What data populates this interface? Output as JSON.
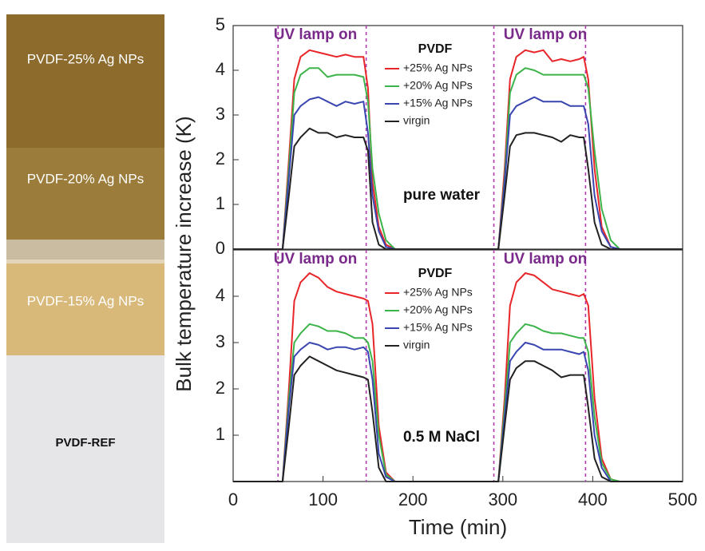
{
  "photo": {
    "labels": [
      "PVDF-25% Ag NPs",
      "PVDF-20% Ag NPs",
      "PVDF-15% Ag NPs",
      "PVDF-REF"
    ]
  },
  "chart_data": [
    {
      "type": "line",
      "ylabel": "Bulk temperature increase (K)",
      "legend_title": "PVDF",
      "annotations": [
        "UV lamp on",
        "UV lamp on",
        "pure water"
      ],
      "vlines": [
        50,
        148,
        290,
        392
      ],
      "xlim": [
        0,
        500
      ],
      "ylim": [
        0,
        5
      ],
      "yticks": [
        0,
        1,
        2,
        3,
        4,
        5
      ],
      "x": [
        0,
        55,
        62,
        68,
        75,
        85,
        95,
        105,
        115,
        125,
        135,
        145,
        150,
        155,
        162,
        170,
        180,
        190,
        290,
        295,
        302,
        308,
        315,
        325,
        335,
        345,
        355,
        365,
        375,
        385,
        390,
        395,
        402,
        410,
        420,
        430,
        500
      ],
      "series": [
        {
          "name": "+25% Ag NPs",
          "color": "#e8262a",
          "values": [
            0,
            0,
            2.0,
            3.8,
            4.3,
            4.45,
            4.4,
            4.35,
            4.3,
            4.35,
            4.3,
            4.3,
            3.6,
            1.5,
            0.5,
            0.1,
            0,
            0,
            0,
            0,
            1.8,
            3.8,
            4.3,
            4.45,
            4.4,
            4.45,
            4.2,
            4.25,
            4.2,
            4.25,
            4.3,
            3.8,
            1.8,
            0.5,
            0.05,
            0,
            0
          ]
        },
        {
          "name": "+20% Ag NPs",
          "color": "#3cb44a",
          "values": [
            0,
            0,
            1.8,
            3.5,
            3.9,
            4.05,
            4.05,
            3.85,
            3.9,
            3.9,
            3.9,
            3.85,
            3.3,
            1.8,
            0.8,
            0.2,
            0,
            0,
            0,
            0,
            1.6,
            3.5,
            3.9,
            4.05,
            4.0,
            3.9,
            3.9,
            3.9,
            3.9,
            3.9,
            3.9,
            3.6,
            2.2,
            0.9,
            0.2,
            0,
            0
          ]
        },
        {
          "name": "+15% Ag NPs",
          "color": "#3a46b0",
          "values": [
            0,
            0,
            1.6,
            3.0,
            3.2,
            3.35,
            3.4,
            3.3,
            3.2,
            3.3,
            3.25,
            3.3,
            2.6,
            1.2,
            0.4,
            0.05,
            0,
            0,
            0,
            0,
            1.5,
            3.0,
            3.2,
            3.3,
            3.4,
            3.3,
            3.3,
            3.3,
            3.2,
            3.2,
            3.2,
            2.8,
            1.2,
            0.4,
            0.05,
            0,
            0
          ]
        },
        {
          "name": "virgin",
          "color": "#222222",
          "values": [
            0,
            0,
            1.2,
            2.3,
            2.5,
            2.7,
            2.6,
            2.6,
            2.5,
            2.55,
            2.5,
            2.5,
            2.2,
            0.6,
            0.1,
            0,
            0,
            0,
            0,
            0,
            1.2,
            2.3,
            2.55,
            2.6,
            2.6,
            2.55,
            2.5,
            2.4,
            2.55,
            2.5,
            2.5,
            1.8,
            0.6,
            0.1,
            0,
            0,
            0
          ]
        }
      ]
    },
    {
      "type": "line",
      "xlabel": "Time (min)",
      "legend_title": "PVDF",
      "annotations": [
        "UV lamp on",
        "UV lamp on",
        "0.5 M NaCl"
      ],
      "vlines": [
        50,
        148,
        290,
        392
      ],
      "xlim": [
        0,
        500
      ],
      "xticks": [
        0,
        100,
        200,
        300,
        400,
        500
      ],
      "ylim": [
        0,
        5
      ],
      "yticks": [
        1,
        2,
        3,
        4
      ],
      "x": [
        0,
        55,
        62,
        68,
        75,
        85,
        95,
        105,
        115,
        125,
        135,
        145,
        150,
        155,
        162,
        170,
        180,
        190,
        290,
        295,
        302,
        308,
        315,
        325,
        335,
        345,
        355,
        365,
        375,
        385,
        390,
        395,
        402,
        410,
        420,
        430,
        500
      ],
      "series": [
        {
          "name": "+25% Ag NPs",
          "color": "#e8262a",
          "values": [
            0,
            0,
            2.0,
            3.9,
            4.3,
            4.5,
            4.4,
            4.2,
            4.1,
            4.05,
            4.0,
            3.95,
            3.9,
            3.4,
            1.2,
            0.2,
            0,
            0,
            0,
            0,
            1.8,
            3.8,
            4.3,
            4.5,
            4.45,
            4.3,
            4.15,
            4.1,
            4.05,
            4.0,
            4.05,
            3.8,
            1.8,
            0.5,
            0.05,
            0,
            0
          ]
        },
        {
          "name": "+20% Ag NPs",
          "color": "#3cb44a",
          "values": [
            0,
            0,
            1.8,
            3.0,
            3.2,
            3.4,
            3.35,
            3.25,
            3.25,
            3.2,
            3.1,
            3.1,
            3.0,
            2.6,
            1.0,
            0.15,
            0,
            0,
            0,
            0,
            1.6,
            3.0,
            3.2,
            3.4,
            3.35,
            3.25,
            3.2,
            3.2,
            3.15,
            3.1,
            3.1,
            2.8,
            1.4,
            0.4,
            0.05,
            0,
            0
          ]
        },
        {
          "name": "+15% Ag NPs",
          "color": "#3a46b0",
          "values": [
            0,
            0,
            1.6,
            2.7,
            2.85,
            3.0,
            2.95,
            2.85,
            2.9,
            2.9,
            2.85,
            2.9,
            2.8,
            2.2,
            0.6,
            0.1,
            0,
            0,
            0,
            0,
            1.4,
            2.6,
            2.8,
            3.0,
            2.95,
            2.85,
            2.85,
            2.85,
            2.8,
            2.75,
            2.8,
            2.4,
            1.0,
            0.3,
            0,
            0,
            0
          ]
        },
        {
          "name": "virgin",
          "color": "#222222",
          "values": [
            0,
            0,
            1.2,
            2.3,
            2.5,
            2.7,
            2.6,
            2.5,
            2.4,
            2.35,
            2.3,
            2.25,
            2.2,
            1.5,
            0.3,
            0,
            0,
            0,
            0,
            0,
            1.2,
            2.2,
            2.45,
            2.6,
            2.6,
            2.5,
            2.4,
            2.25,
            2.3,
            2.3,
            2.3,
            1.6,
            0.5,
            0.1,
            0,
            0,
            0
          ]
        }
      ]
    }
  ]
}
